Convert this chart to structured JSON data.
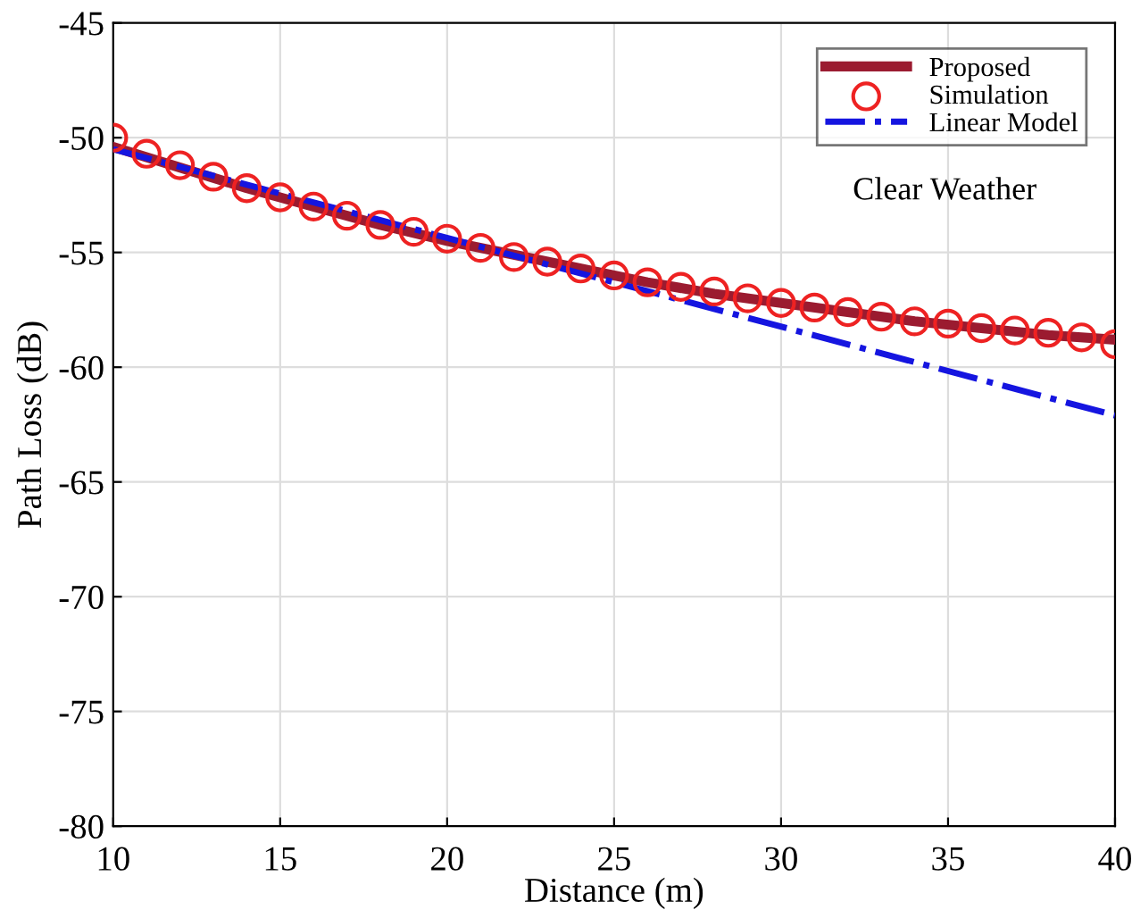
{
  "chart_data": {
    "type": "line",
    "xlabel": "Distance (m)",
    "ylabel": "Path Loss (dB)",
    "xlim": [
      10,
      40
    ],
    "ylim": [
      -80,
      -45
    ],
    "xticks": [
      10,
      15,
      20,
      25,
      30,
      35,
      40
    ],
    "yticks": [
      -80,
      -75,
      -70,
      -65,
      -60,
      -55,
      -50,
      -45
    ],
    "grid": true,
    "legend": "top right",
    "annotations": [
      "Clear Weather"
    ],
    "series": [
      {
        "name": "Proposed",
        "color": "#9b1b30",
        "line_style": "solid",
        "marker": "none",
        "x": [
          10,
          12,
          14,
          16,
          18,
          20,
          22,
          24,
          26,
          28,
          30,
          32,
          34,
          36,
          38,
          40
        ],
        "values": [
          -50.4,
          -51.3,
          -52.2,
          -53.0,
          -53.8,
          -54.5,
          -55.1,
          -55.7,
          -56.3,
          -56.8,
          -57.2,
          -57.6,
          -58.0,
          -58.3,
          -58.6,
          -58.8
        ]
      },
      {
        "name": "Simulation",
        "type": "scatter",
        "color": "#ee2222",
        "marker": "circle",
        "x": [
          10,
          11,
          12,
          13,
          14,
          15,
          16,
          17,
          18,
          19,
          20,
          21,
          22,
          23,
          24,
          25,
          26,
          27,
          28,
          29,
          30,
          31,
          32,
          33,
          34,
          35,
          36,
          37,
          38,
          39,
          40
        ],
        "values": [
          -50.0,
          -50.7,
          -51.2,
          -51.7,
          -52.2,
          -52.6,
          -53.0,
          -53.4,
          -53.8,
          -54.1,
          -54.4,
          -54.8,
          -55.2,
          -55.4,
          -55.7,
          -56.0,
          -56.3,
          -56.5,
          -56.7,
          -57.0,
          -57.2,
          -57.4,
          -57.6,
          -57.8,
          -58.0,
          -58.1,
          -58.3,
          -58.4,
          -58.5,
          -58.7,
          -59.0
        ]
      },
      {
        "name": "Linear Model",
        "color": "#1515e0",
        "line_style": "dashdot",
        "marker": "none",
        "x": [
          10,
          40
        ],
        "values": [
          -50.5,
          -62.1
        ]
      }
    ]
  }
}
